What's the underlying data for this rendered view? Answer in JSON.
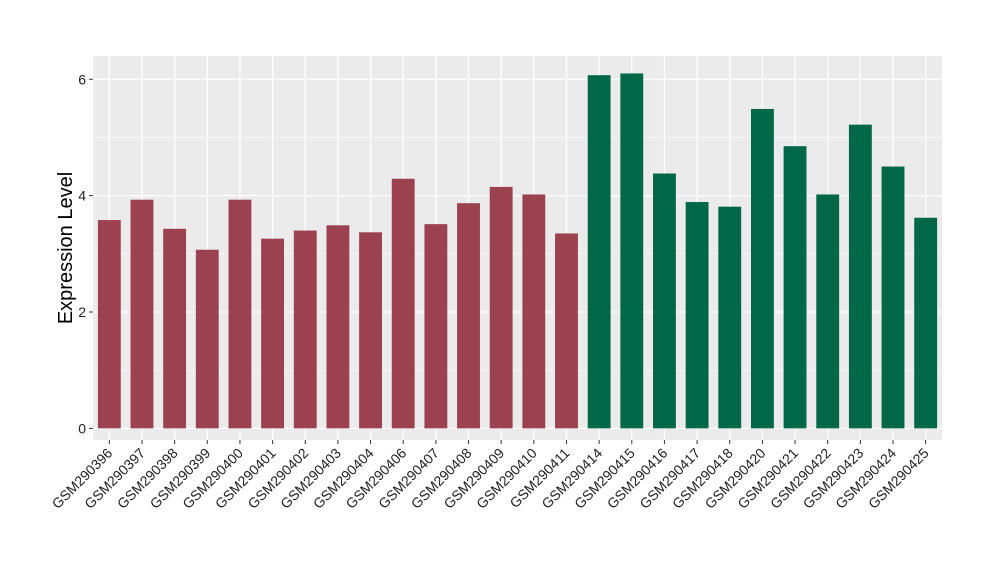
{
  "chart_data": {
    "type": "bar",
    "title": "",
    "xlabel": "",
    "ylabel": "Expression Level",
    "ylim": [
      -0.2,
      6.4
    ],
    "yticks": [
      0,
      2,
      4,
      6
    ],
    "grid": true,
    "legend": "none",
    "categories": [
      "GSM290396",
      "GSM290397",
      "GSM290398",
      "GSM290399",
      "GSM290400",
      "GSM290401",
      "GSM290402",
      "GSM290403",
      "GSM290404",
      "GSM290406",
      "GSM290407",
      "GSM290408",
      "GSM290409",
      "GSM290410",
      "GSM290411",
      "GSM290414",
      "GSM290415",
      "GSM290416",
      "GSM290417",
      "GSM290418",
      "GSM290420",
      "GSM290421",
      "GSM290422",
      "GSM290423",
      "GSM290424",
      "GSM290425"
    ],
    "values": [
      3.58,
      3.93,
      3.43,
      3.07,
      3.93,
      3.26,
      3.4,
      3.49,
      3.37,
      4.29,
      3.51,
      3.87,
      4.15,
      4.02,
      3.35,
      6.07,
      6.1,
      4.38,
      3.89,
      3.81,
      5.49,
      4.85,
      4.02,
      5.22,
      4.5,
      3.62
    ],
    "groups": [
      "a",
      "a",
      "a",
      "a",
      "a",
      "a",
      "a",
      "a",
      "a",
      "a",
      "a",
      "a",
      "a",
      "a",
      "a",
      "b",
      "b",
      "b",
      "b",
      "b",
      "b",
      "b",
      "b",
      "b",
      "b",
      "b"
    ],
    "colors": {
      "a": "#9b4150",
      "b": "#006846",
      "panel": "#ebebeb",
      "grid": "#ffffff"
    }
  }
}
